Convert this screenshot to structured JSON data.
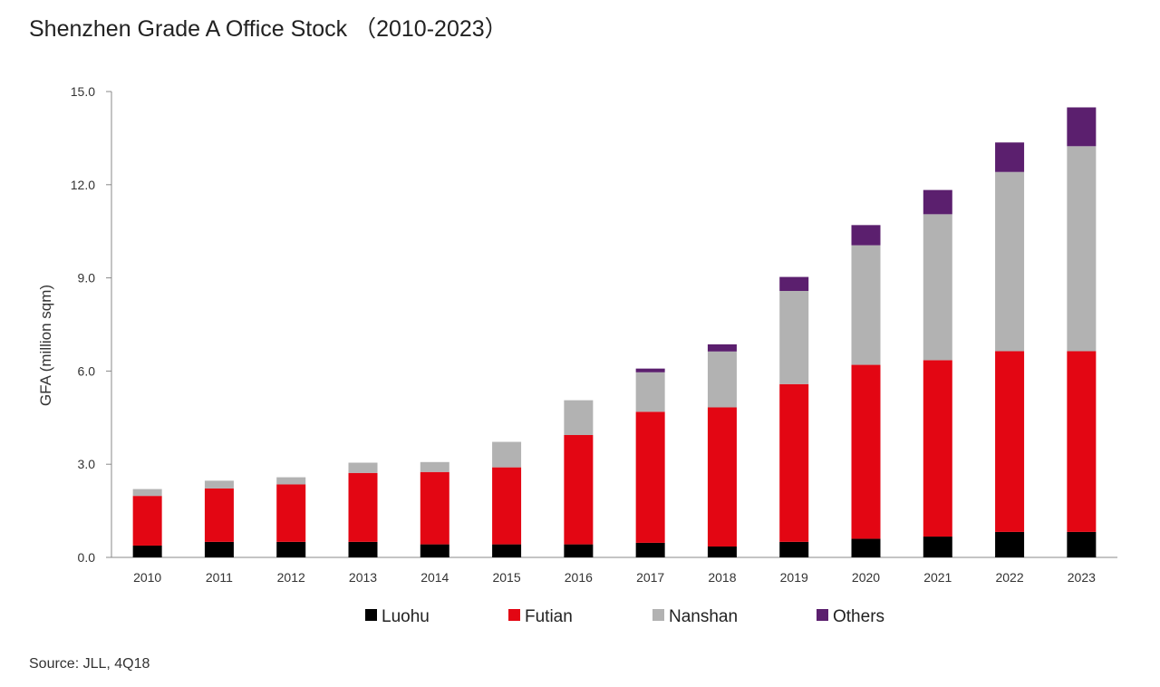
{
  "chart_data": {
    "type": "bar",
    "stacked": true,
    "title": "Shenzhen Grade A Office Stock （2010-2023）",
    "ylabel": "GFA (million sqm)",
    "xlabel": "",
    "ylim": [
      0,
      15
    ],
    "yticks": [
      "0.0",
      "3.0",
      "6.0",
      "9.0",
      "12.0",
      "15.0"
    ],
    "ytick_values": [
      0,
      3,
      6,
      9,
      12,
      15
    ],
    "grid": false,
    "legend_position": "bottom",
    "categories": [
      "2010",
      "2011",
      "2012",
      "2013",
      "2014",
      "2015",
      "2016",
      "2017",
      "2018",
      "2019",
      "2020",
      "2021",
      "2022",
      "2023"
    ],
    "series": [
      {
        "name": "Luohu",
        "color": "#000000",
        "values": [
          0.38,
          0.5,
          0.5,
          0.5,
          0.42,
          0.42,
          0.42,
          0.47,
          0.35,
          0.5,
          0.6,
          0.67,
          0.82,
          0.82
        ]
      },
      {
        "name": "Futian",
        "color": "#e30613",
        "values": [
          1.6,
          1.72,
          1.85,
          2.22,
          2.33,
          2.48,
          3.52,
          4.22,
          4.48,
          5.08,
          5.6,
          5.68,
          5.82,
          5.82
        ]
      },
      {
        "name": "Nanshan",
        "color": "#b2b2b2",
        "values": [
          0.22,
          0.25,
          0.23,
          0.33,
          0.32,
          0.82,
          1.12,
          1.27,
          1.8,
          3.0,
          3.85,
          4.7,
          5.77,
          6.6
        ]
      },
      {
        "name": "Others",
        "color": "#5b1f6e",
        "values": [
          0,
          0,
          0,
          0,
          0,
          0,
          0,
          0.12,
          0.23,
          0.45,
          0.65,
          0.78,
          0.95,
          1.25
        ]
      }
    ]
  },
  "footer": {
    "source": "Source: JLL, 4Q18"
  }
}
